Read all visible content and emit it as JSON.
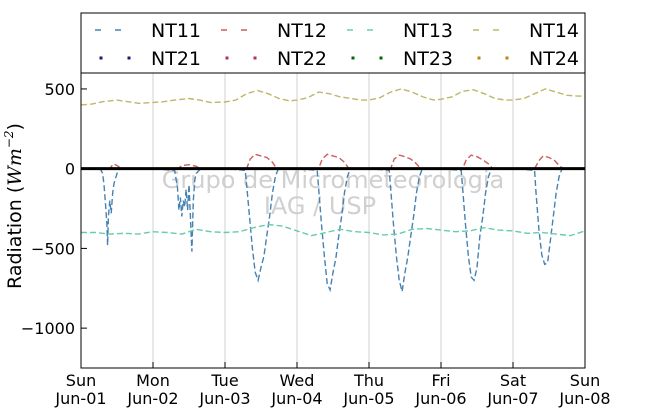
{
  "chart_data": {
    "type": "line",
    "ylabel": {
      "prefix": "Radiation (",
      "unit_base": "Wm",
      "unit_exp": "−2",
      "suffix": ")"
    },
    "ylim": [
      -1250,
      600
    ],
    "yticks": [
      500,
      0,
      -500,
      -1000
    ],
    "ytick_labels": [
      "500",
      "0",
      "−500",
      "−1000"
    ],
    "xlim_days": [
      0,
      7
    ],
    "xticks": [
      {
        "day": "Sun",
        "date": "Jun-01"
      },
      {
        "day": "Mon",
        "date": "Jun-02"
      },
      {
        "day": "Tue",
        "date": "Jun-03"
      },
      {
        "day": "Wed",
        "date": "Jun-04"
      },
      {
        "day": "Thu",
        "date": "Jun-05"
      },
      {
        "day": "Fri",
        "date": "Jun-06"
      },
      {
        "day": "Sat",
        "date": "Jun-07"
      },
      {
        "day": "Sun",
        "date": "Jun-08"
      }
    ],
    "grid": "vertical",
    "zero_line": true,
    "legend_position": "top",
    "watermark": [
      "Grupo de Micrometeorologia",
      "IAG / USP"
    ],
    "series": [
      {
        "name": "NT11",
        "style": "dashed",
        "color": "#4682b4",
        "points": [
          [
            0.0,
            0
          ],
          [
            0.25,
            0
          ],
          [
            0.28,
            -10
          ],
          [
            0.3,
            -30
          ],
          [
            0.32,
            -100
          ],
          [
            0.34,
            -220
          ],
          [
            0.36,
            -350
          ],
          [
            0.37,
            -480
          ],
          [
            0.38,
            -300
          ],
          [
            0.4,
            -200
          ],
          [
            0.42,
            -280
          ],
          [
            0.44,
            -150
          ],
          [
            0.46,
            -90
          ],
          [
            0.48,
            -60
          ],
          [
            0.5,
            -30
          ],
          [
            0.54,
            0
          ],
          [
            1.0,
            0
          ],
          [
            1.3,
            -10
          ],
          [
            1.34,
            -120
          ],
          [
            1.36,
            -260
          ],
          [
            1.38,
            -180
          ],
          [
            1.4,
            -300
          ],
          [
            1.42,
            -200
          ],
          [
            1.44,
            -240
          ],
          [
            1.46,
            -130
          ],
          [
            1.48,
            -260
          ],
          [
            1.5,
            -100
          ],
          [
            1.52,
            -300
          ],
          [
            1.54,
            -520
          ],
          [
            1.56,
            -200
          ],
          [
            1.58,
            -70
          ],
          [
            1.6,
            -30
          ],
          [
            1.66,
            0
          ],
          [
            2.0,
            0
          ],
          [
            2.28,
            -10
          ],
          [
            2.3,
            -100
          ],
          [
            2.34,
            -300
          ],
          [
            2.38,
            -500
          ],
          [
            2.42,
            -650
          ],
          [
            2.46,
            -700
          ],
          [
            2.5,
            -620
          ],
          [
            2.54,
            -550
          ],
          [
            2.58,
            -420
          ],
          [
            2.62,
            -300
          ],
          [
            2.66,
            -150
          ],
          [
            2.7,
            -50
          ],
          [
            2.74,
            0
          ],
          [
            3.0,
            0
          ],
          [
            3.28,
            -10
          ],
          [
            3.3,
            -120
          ],
          [
            3.34,
            -350
          ],
          [
            3.38,
            -550
          ],
          [
            3.42,
            -720
          ],
          [
            3.46,
            -760
          ],
          [
            3.5,
            -650
          ],
          [
            3.54,
            -560
          ],
          [
            3.58,
            -420
          ],
          [
            3.62,
            -300
          ],
          [
            3.66,
            -150
          ],
          [
            3.7,
            -50
          ],
          [
            3.74,
            0
          ],
          [
            4.0,
            0
          ],
          [
            4.28,
            -10
          ],
          [
            4.3,
            -120
          ],
          [
            4.34,
            -350
          ],
          [
            4.38,
            -550
          ],
          [
            4.42,
            -700
          ],
          [
            4.46,
            -770
          ],
          [
            4.5,
            -650
          ],
          [
            4.54,
            -550
          ],
          [
            4.58,
            -420
          ],
          [
            4.62,
            -300
          ],
          [
            4.66,
            -150
          ],
          [
            4.7,
            -50
          ],
          [
            4.74,
            0
          ],
          [
            5.0,
            0
          ],
          [
            5.28,
            -10
          ],
          [
            5.3,
            -120
          ],
          [
            5.34,
            -350
          ],
          [
            5.38,
            -550
          ],
          [
            5.42,
            -680
          ],
          [
            5.46,
            -700
          ],
          [
            5.5,
            -620
          ],
          [
            5.54,
            -420
          ],
          [
            5.58,
            -300
          ],
          [
            5.62,
            -150
          ],
          [
            5.66,
            -50
          ],
          [
            5.7,
            0
          ],
          [
            6.0,
            0
          ],
          [
            6.3,
            -10
          ],
          [
            6.32,
            -150
          ],
          [
            6.36,
            -380
          ],
          [
            6.4,
            -540
          ],
          [
            6.44,
            -600
          ],
          [
            6.48,
            -590
          ],
          [
            6.52,
            -450
          ],
          [
            6.56,
            -300
          ],
          [
            6.6,
            -150
          ],
          [
            6.64,
            -50
          ],
          [
            6.68,
            0
          ],
          [
            7.0,
            0
          ]
        ]
      },
      {
        "name": "NT12",
        "style": "dashed",
        "color": "#cd5c5c",
        "points": [
          [
            0.0,
            0
          ],
          [
            0.4,
            0
          ],
          [
            0.45,
            30
          ],
          [
            0.5,
            20
          ],
          [
            0.56,
            0
          ],
          [
            1.0,
            0
          ],
          [
            1.35,
            0
          ],
          [
            1.4,
            20
          ],
          [
            1.5,
            25
          ],
          [
            1.6,
            15
          ],
          [
            1.66,
            0
          ],
          [
            2.0,
            0
          ],
          [
            2.3,
            0
          ],
          [
            2.35,
            60
          ],
          [
            2.42,
            90
          ],
          [
            2.5,
            80
          ],
          [
            2.58,
            70
          ],
          [
            2.66,
            40
          ],
          [
            2.72,
            0
          ],
          [
            3.0,
            0
          ],
          [
            3.3,
            0
          ],
          [
            3.35,
            60
          ],
          [
            3.42,
            90
          ],
          [
            3.5,
            80
          ],
          [
            3.58,
            70
          ],
          [
            3.66,
            40
          ],
          [
            3.72,
            0
          ],
          [
            4.0,
            0
          ],
          [
            4.3,
            0
          ],
          [
            4.35,
            60
          ],
          [
            4.42,
            85
          ],
          [
            4.5,
            75
          ],
          [
            4.58,
            60
          ],
          [
            4.66,
            30
          ],
          [
            4.72,
            0
          ],
          [
            5.0,
            0
          ],
          [
            5.3,
            0
          ],
          [
            5.35,
            55
          ],
          [
            5.42,
            85
          ],
          [
            5.5,
            75
          ],
          [
            5.58,
            55
          ],
          [
            5.66,
            30
          ],
          [
            5.72,
            0
          ],
          [
            6.0,
            0
          ],
          [
            6.3,
            0
          ],
          [
            6.36,
            50
          ],
          [
            6.42,
            80
          ],
          [
            6.5,
            70
          ],
          [
            6.58,
            50
          ],
          [
            6.64,
            20
          ],
          [
            6.7,
            0
          ],
          [
            7.0,
            0
          ]
        ]
      },
      {
        "name": "NT13",
        "style": "dashed",
        "color": "#66cdaa",
        "points": [
          [
            0.0,
            -400
          ],
          [
            0.2,
            -400
          ],
          [
            0.4,
            -410
          ],
          [
            0.6,
            -405
          ],
          [
            0.8,
            -410
          ],
          [
            1.0,
            -395
          ],
          [
            1.2,
            -400
          ],
          [
            1.4,
            -410
          ],
          [
            1.6,
            -380
          ],
          [
            1.8,
            -395
          ],
          [
            2.0,
            -400
          ],
          [
            2.2,
            -395
          ],
          [
            2.4,
            -370
          ],
          [
            2.6,
            -350
          ],
          [
            2.8,
            -360
          ],
          [
            3.0,
            -390
          ],
          [
            3.2,
            -420
          ],
          [
            3.4,
            -400
          ],
          [
            3.6,
            -380
          ],
          [
            3.8,
            -395
          ],
          [
            4.0,
            -400
          ],
          [
            4.2,
            -415
          ],
          [
            4.4,
            -410
          ],
          [
            4.6,
            -380
          ],
          [
            4.8,
            -375
          ],
          [
            5.0,
            -385
          ],
          [
            5.2,
            -395
          ],
          [
            5.4,
            -390
          ],
          [
            5.6,
            -370
          ],
          [
            5.8,
            -385
          ],
          [
            6.0,
            -390
          ],
          [
            6.2,
            -405
          ],
          [
            6.4,
            -400
          ],
          [
            6.6,
            -410
          ],
          [
            6.8,
            -420
          ],
          [
            7.0,
            -390
          ]
        ]
      },
      {
        "name": "NT14",
        "style": "dashed",
        "color": "#bdb76b",
        "points": [
          [
            0.0,
            400
          ],
          [
            0.15,
            405
          ],
          [
            0.3,
            420
          ],
          [
            0.5,
            430
          ],
          [
            0.65,
            420
          ],
          [
            0.8,
            410
          ],
          [
            1.0,
            415
          ],
          [
            1.15,
            420
          ],
          [
            1.3,
            430
          ],
          [
            1.5,
            440
          ],
          [
            1.65,
            430
          ],
          [
            1.8,
            415
          ],
          [
            2.0,
            418
          ],
          [
            2.15,
            430
          ],
          [
            2.3,
            470
          ],
          [
            2.45,
            490
          ],
          [
            2.6,
            470
          ],
          [
            2.75,
            440
          ],
          [
            2.9,
            425
          ],
          [
            3.0,
            430
          ],
          [
            3.15,
            445
          ],
          [
            3.3,
            480
          ],
          [
            3.45,
            470
          ],
          [
            3.6,
            450
          ],
          [
            3.75,
            440
          ],
          [
            3.9,
            430
          ],
          [
            4.0,
            430
          ],
          [
            4.15,
            445
          ],
          [
            4.3,
            480
          ],
          [
            4.45,
            500
          ],
          [
            4.6,
            480
          ],
          [
            4.75,
            450
          ],
          [
            4.9,
            430
          ],
          [
            5.0,
            435
          ],
          [
            5.15,
            450
          ],
          [
            5.3,
            485
          ],
          [
            5.45,
            495
          ],
          [
            5.6,
            470
          ],
          [
            5.75,
            440
          ],
          [
            5.9,
            430
          ],
          [
            6.0,
            430
          ],
          [
            6.15,
            440
          ],
          [
            6.3,
            470
          ],
          [
            6.45,
            500
          ],
          [
            6.6,
            480
          ],
          [
            6.75,
            460
          ],
          [
            6.9,
            455
          ],
          [
            7.0,
            455
          ]
        ]
      },
      {
        "name": "NT21",
        "style": "dotted",
        "color": "#191970",
        "points": []
      },
      {
        "name": "NT22",
        "style": "dotted",
        "color": "#b03060",
        "points": []
      },
      {
        "name": "NT23",
        "style": "dotted",
        "color": "#006400",
        "points": []
      },
      {
        "name": "NT24",
        "style": "dotted",
        "color": "#b8860b",
        "points": []
      }
    ]
  }
}
